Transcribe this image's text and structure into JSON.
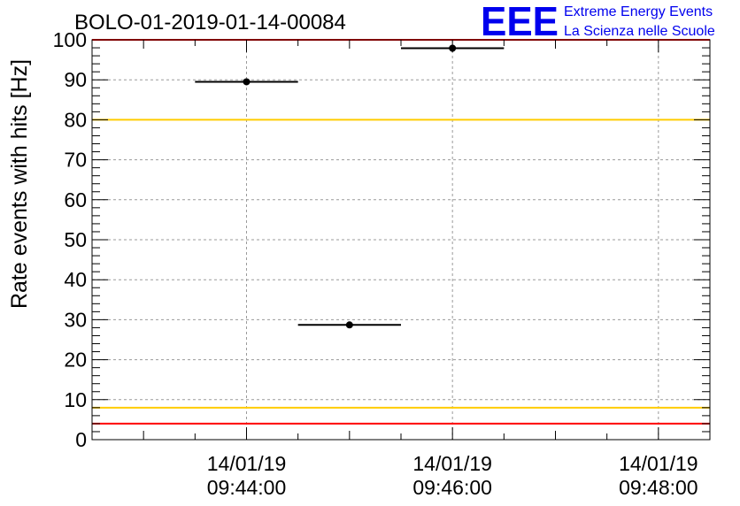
{
  "chart_data": {
    "type": "scatter",
    "title": "BOLO-01-2019-01-14-00084",
    "xlabel": "",
    "ylabel": "Rate events with hits [Hz]",
    "x_axis_type": "time",
    "x_tick_labels": [
      {
        "date": "14/01/19",
        "time": "09:44:00",
        "t": "2019-01-14 09:44:00"
      },
      {
        "date": "14/01/19",
        "time": "09:46:00",
        "t": "2019-01-14 09:46:00"
      },
      {
        "date": "14/01/19",
        "time": "09:48:00",
        "t": "2019-01-14 09:48:00"
      }
    ],
    "xlim": [
      "2019-01-14 09:42:30",
      "2019-01-14 09:48:30"
    ],
    "ylim": [
      0,
      100
    ],
    "y_ticks": [
      0,
      10,
      20,
      30,
      40,
      50,
      60,
      70,
      80,
      90,
      100
    ],
    "grid": true,
    "series": [
      {
        "points": [
          {
            "x": "2019-01-14 09:44:00",
            "y": 89.5,
            "x_err_minus": "2019-01-14 09:43:30",
            "x_err_plus": "2019-01-14 09:44:30",
            "y_err": 0.6
          },
          {
            "x": "2019-01-14 09:45:00",
            "y": 28.7,
            "x_err_minus": "2019-01-14 09:44:30",
            "x_err_plus": "2019-01-14 09:45:30",
            "y_err": 0.3
          },
          {
            "x": "2019-01-14 09:46:00",
            "y": 97.9,
            "x_err_minus": "2019-01-14 09:45:30",
            "x_err_plus": "2019-01-14 09:46:30",
            "y_err": 0.8
          }
        ]
      }
    ],
    "reference_lines": [
      {
        "y": 100,
        "color": "#ff0000"
      },
      {
        "y": 80,
        "color": "#ffcc00"
      },
      {
        "y": 8,
        "color": "#ffcc00"
      },
      {
        "y": 4,
        "color": "#ff0000"
      }
    ]
  },
  "logo": {
    "mark": "EEE",
    "line1": "Extreme Energy Events",
    "line2": "La Scienza nelle Scuole",
    "color": "#0000ee"
  }
}
